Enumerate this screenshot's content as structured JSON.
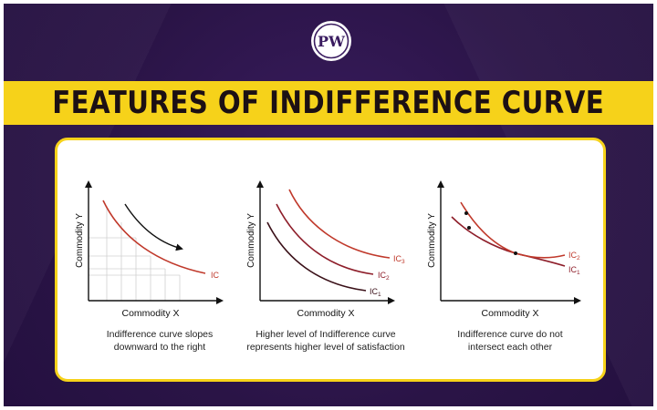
{
  "logo": {
    "text": "PW"
  },
  "title": "FEATURES OF INDIFFERENCE CURVE",
  "panels": [
    {
      "ylabel": "Commodity Y",
      "xlabel": "Commodity X",
      "curves": [
        {
          "label": "IC"
        }
      ],
      "caption": [
        "Indifference curve slopes",
        "downward to the right"
      ]
    },
    {
      "ylabel": "Commodity Y",
      "xlabel": "Commodity X",
      "curves": [
        {
          "label": "IC3"
        },
        {
          "label": "IC2"
        },
        {
          "label": "IC1"
        }
      ],
      "caption": [
        "Higher level of Indifference curve",
        "represents higher level of satisfaction"
      ]
    },
    {
      "ylabel": "Commodity Y",
      "xlabel": "Commodity X",
      "curves": [
        {
          "label": "IC2"
        },
        {
          "label": "IC1"
        }
      ],
      "caption": [
        "Indifference curve do not",
        "intersect each other"
      ]
    }
  ],
  "colors": {
    "background": "#2a1446",
    "banner": "#f6d21a",
    "curve": "#c0392b",
    "curve_dark": "#5a1420",
    "grid": "#d0d0d0"
  }
}
